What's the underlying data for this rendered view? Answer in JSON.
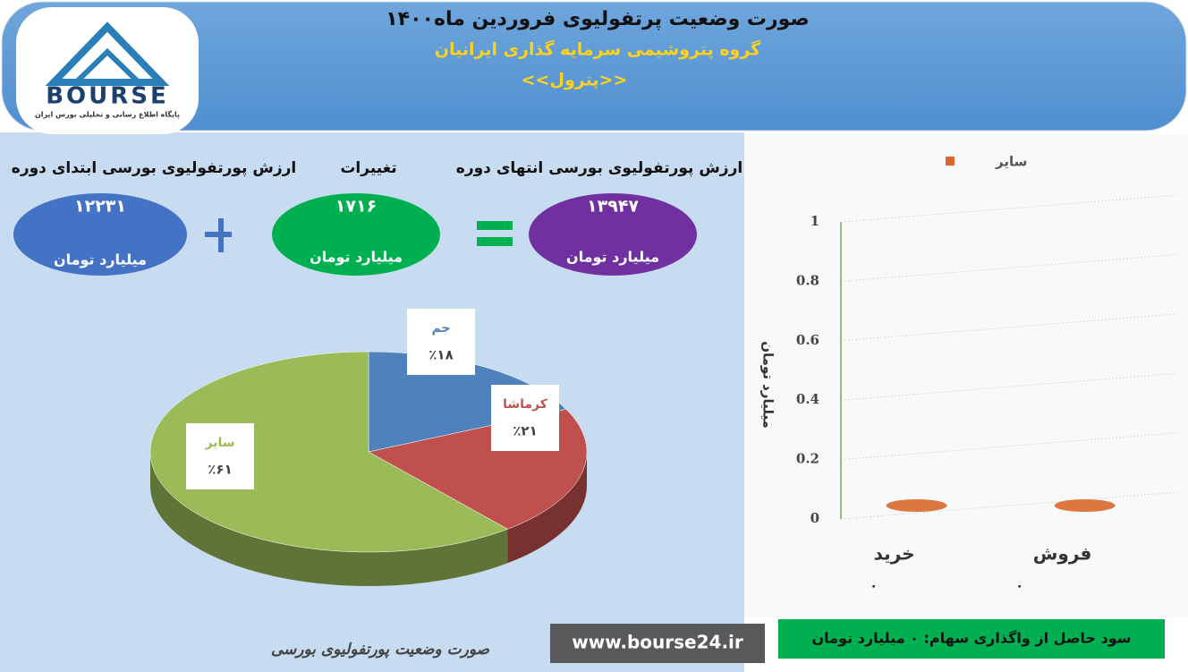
{
  "header": {
    "title": "صورت وضعیت پرتفولیوی فروردین ماه۱۴۰۰",
    "subtitle": "گروه پتروشیمی سرمایه گذاری ایرانیان",
    "ticker": "<<پترول>>",
    "logo_text": "BOURSE",
    "logo_tagline": "پایگاه اطلاع رسانی و تحلیلی بورس ایران"
  },
  "summary": {
    "start": {
      "label": "ارزش پورتفولیوی بورسی ابتدای دوره",
      "value": "۱۲۲۳۱",
      "unit": "میلیارد تومان"
    },
    "change": {
      "label": "تغییرات",
      "value": "۱۷۱۶",
      "unit": "میلیارد تومان"
    },
    "end": {
      "label": "ارزش پورتفولیوی بورسی انتهای دوره",
      "value": "۱۳۹۴۷",
      "unit": "میلیارد تومان"
    }
  },
  "chart_data": [
    {
      "type": "pie",
      "categories": [
        "جم",
        "کرماشا",
        "سایر"
      ],
      "values": [
        18,
        21,
        61
      ],
      "value_labels": [
        "٪۱۸",
        "٪۲۱",
        "٪۶۱"
      ],
      "colors": [
        "#4f81bd",
        "#c0504d",
        "#9bbb59"
      ]
    },
    {
      "type": "bar",
      "categories": [
        "خرید",
        "فروش"
      ],
      "series": [
        {
          "name": "سایر",
          "color": "#d8692a",
          "values": [
            0,
            0
          ],
          "value_labels": [
            "۰",
            "۰"
          ]
        }
      ],
      "ylabel": "میلیارد تومان",
      "ylim": [
        0,
        1
      ],
      "yticks": [
        0,
        0.2,
        0.4,
        0.6,
        0.8,
        1
      ],
      "grid": true,
      "legend": "top"
    }
  ],
  "footer": {
    "caption": "صورت وضعیت پورتفولیوی بورسی",
    "url": "www.bourse24.ir",
    "profit": "سود حاصل از واگذاری سهام: ۰ میلیارد تومان"
  }
}
